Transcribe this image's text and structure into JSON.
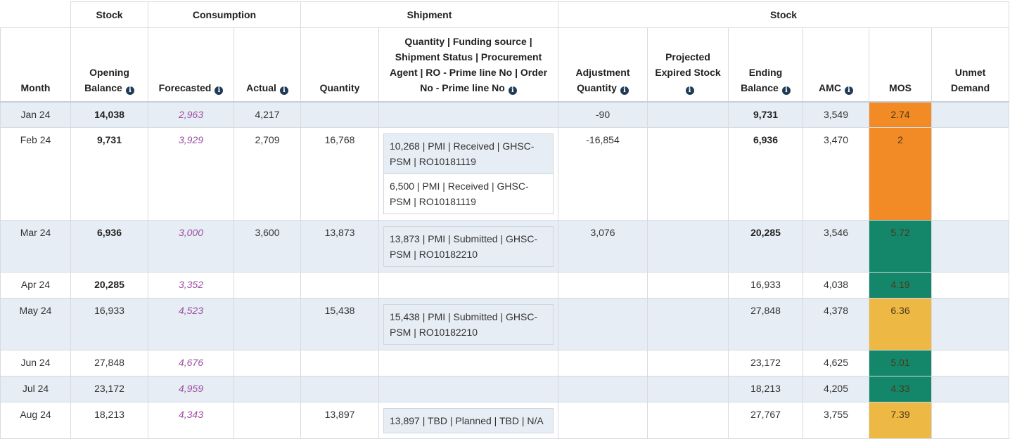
{
  "header": {
    "group_row": [
      "Stock",
      "Consumption",
      "Shipment",
      "Stock"
    ],
    "columns": [
      {
        "label": "Month",
        "info": false
      },
      {
        "label": "Opening Balance",
        "info": true
      },
      {
        "label": "Forecasted",
        "info": true
      },
      {
        "label": "Actual",
        "info": true
      },
      {
        "label": "Quantity",
        "info": false
      },
      {
        "label": "Quantity | Funding source | Shipment Status | Procurement Agent | RO - Prime line No | Order No - Prime line No",
        "info": true
      },
      {
        "label": "Adjustment Quantity",
        "info": true
      },
      {
        "label": "Projected Expired Stock",
        "info": true
      },
      {
        "label": "Ending Balance",
        "info": true
      },
      {
        "label": "AMC",
        "info": true
      },
      {
        "label": "MOS",
        "info": false
      },
      {
        "label": "Unmet Demand",
        "info": false
      }
    ]
  },
  "colors": {
    "mos_red_orange": "#f28a25",
    "mos_green": "#14876b",
    "mos_yellow": "#eeb844",
    "forecast_text": "#9b4d9f",
    "alt_row": "#e6edf4"
  },
  "rows": [
    {
      "month": "Jan 24",
      "opening": "14,038",
      "opening_bold": true,
      "forecasted": "2,963",
      "actual": "4,217",
      "quantity": "",
      "shipments": [],
      "adjustment": "-90",
      "expired": "",
      "ending": "9,731",
      "ending_bold": true,
      "amc": "3,549",
      "mos": "2.74",
      "mos_color": "#f28a25",
      "unmet": ""
    },
    {
      "month": "Feb 24",
      "opening": "9,731",
      "opening_bold": true,
      "forecasted": "3,929",
      "actual": "2,709",
      "quantity": "16,768",
      "shipments": [
        "10,268 | PMI | Received | GHSC-PSM | RO10181119",
        "6,500 | PMI | Received | GHSC-PSM | RO10181119"
      ],
      "adjustment": "-16,854",
      "expired": "",
      "ending": "6,936",
      "ending_bold": true,
      "amc": "3,470",
      "mos": "2",
      "mos_color": "#f28a25",
      "unmet": ""
    },
    {
      "month": "Mar 24",
      "opening": "6,936",
      "opening_bold": true,
      "forecasted": "3,000",
      "actual": "3,600",
      "quantity": "13,873",
      "shipments": [
        "13,873 | PMI | Submitted | GHSC-PSM | RO10182210"
      ],
      "adjustment": "3,076",
      "expired": "",
      "ending": "20,285",
      "ending_bold": true,
      "amc": "3,546",
      "mos": "5.72",
      "mos_color": "#14876b",
      "unmet": ""
    },
    {
      "month": "Apr 24",
      "opening": "20,285",
      "opening_bold": true,
      "forecasted": "3,352",
      "actual": "",
      "quantity": "",
      "shipments": [],
      "adjustment": "",
      "expired": "",
      "ending": "16,933",
      "ending_bold": false,
      "amc": "4,038",
      "mos": "4.19",
      "mos_color": "#14876b",
      "unmet": ""
    },
    {
      "month": "May 24",
      "opening": "16,933",
      "opening_bold": false,
      "forecasted": "4,523",
      "actual": "",
      "quantity": "15,438",
      "shipments": [
        "15,438 | PMI | Submitted | GHSC-PSM | RO10182210"
      ],
      "adjustment": "",
      "expired": "",
      "ending": "27,848",
      "ending_bold": false,
      "amc": "4,378",
      "mos": "6.36",
      "mos_color": "#eeb844",
      "unmet": ""
    },
    {
      "month": "Jun 24",
      "opening": "27,848",
      "opening_bold": false,
      "forecasted": "4,676",
      "actual": "",
      "quantity": "",
      "shipments": [],
      "adjustment": "",
      "expired": "",
      "ending": "23,172",
      "ending_bold": false,
      "amc": "4,625",
      "mos": "5.01",
      "mos_color": "#14876b",
      "unmet": ""
    },
    {
      "month": "Jul 24",
      "opening": "23,172",
      "opening_bold": false,
      "forecasted": "4,959",
      "actual": "",
      "quantity": "",
      "shipments": [],
      "adjustment": "",
      "expired": "",
      "ending": "18,213",
      "ending_bold": false,
      "amc": "4,205",
      "mos": "4.33",
      "mos_color": "#14876b",
      "unmet": ""
    },
    {
      "month": "Aug 24",
      "opening": "18,213",
      "opening_bold": false,
      "forecasted": "4,343",
      "actual": "",
      "quantity": "13,897",
      "shipments": [
        "13,897 | TBD | Planned | TBD | N/A"
      ],
      "adjustment": "",
      "expired": "",
      "ending": "27,767",
      "ending_bold": false,
      "amc": "3,755",
      "mos": "7.39",
      "mos_color": "#eeb844",
      "unmet": ""
    }
  ]
}
